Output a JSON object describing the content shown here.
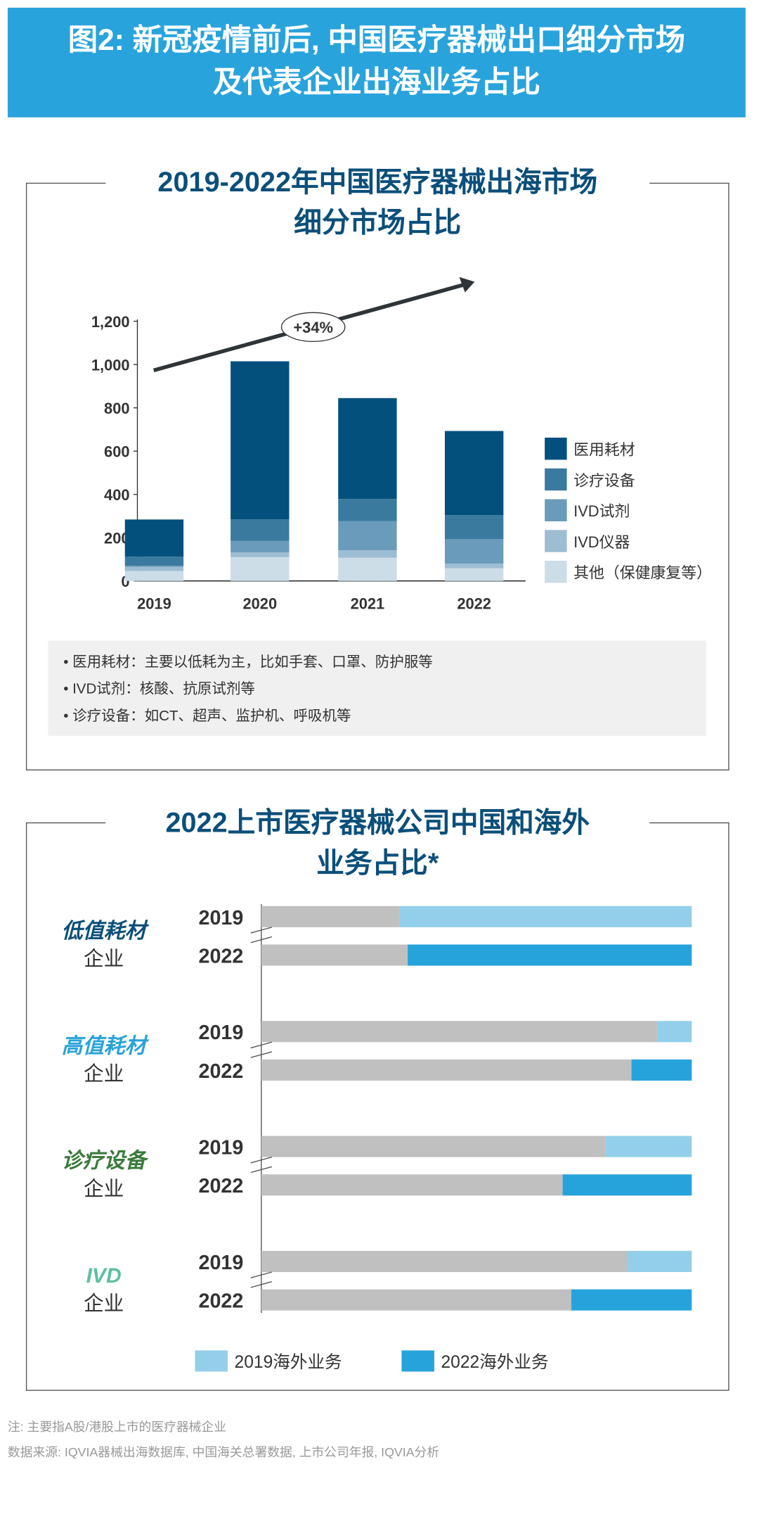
{
  "header": {
    "line1": "图2: 新冠疫情前后, 中国医疗器械出口细分市场",
    "line2": "及代表企业出海业务占比"
  },
  "chart_data": [
    {
      "type": "bar",
      "stacked": true,
      "title": "2019-2022年中国医疗器械出海市场细分市场占比",
      "title_lines": [
        "2019-2022年中国医疗器械出海市场",
        "细分市场占比"
      ],
      "categories": [
        "2019",
        "2020",
        "2021",
        "2022"
      ],
      "ylim": [
        0,
        1200
      ],
      "yticks": [
        "0",
        "200",
        "400",
        "600",
        "800",
        "1,000",
        "1,200"
      ],
      "legend_position": "right",
      "annotation": "+34%",
      "series": [
        {
          "name": "其他（保健康复等）",
          "color": "#ccdde8",
          "values": [
            46,
            110,
            107,
            59
          ]
        },
        {
          "name": "IVD仪器",
          "color": "#9dbdd2",
          "values": [
            19,
            22,
            35,
            21
          ]
        },
        {
          "name": "IVD试剂",
          "color": "#6a9bba",
          "values": [
            5,
            54,
            135,
            113
          ]
        },
        {
          "name": "诊疗设备",
          "color": "#3a7a9e",
          "values": [
            43,
            99,
            102,
            111
          ]
        },
        {
          "name": "医用耗材",
          "color": "#03507d",
          "values": [
            171,
            730,
            466,
            389
          ]
        }
      ],
      "legend_order": [
        "医用耗材",
        "诊疗设备",
        "IVD试剂",
        "IVD仪器",
        "其他（保健康复等）"
      ],
      "notes": [
        "• 医用耗材：主要以低耗为主，比如手套、口罩、防护服等",
        "• IVD试剂：核酸、抗原试剂等",
        "• 诊疗设备：如CT、超声、监护机、呼吸机等"
      ]
    },
    {
      "type": "bar",
      "orientation": "horizontal",
      "stacked": true,
      "unit": "%",
      "title": "2022上市医疗器械公司中国和海外业务占比*",
      "title_lines": [
        "2022上市医疗器械公司中国和海外",
        "业务占比*"
      ],
      "domestic_color": "#c0c0c0",
      "groups": [
        {
          "name": "低值耗材",
          "suffix": "企业",
          "color": "#0b4f7a",
          "rows": [
            {
              "year": "2019",
              "overseas": 68
            },
            {
              "year": "2022",
              "overseas": 66
            }
          ]
        },
        {
          "name": "高值耗材",
          "suffix": "企业",
          "color": "#2aa3d8",
          "rows": [
            {
              "year": "2019",
              "overseas": 8
            },
            {
              "year": "2022",
              "overseas": 14
            }
          ]
        },
        {
          "name": "诊疗设备",
          "suffix": "企业",
          "color": "#3b7a3c",
          "rows": [
            {
              "year": "2019",
              "overseas": 20
            },
            {
              "year": "2022",
              "overseas": 30
            }
          ]
        },
        {
          "name": "IVD",
          "suffix": "企业",
          "color": "#5cc0a0",
          "rows": [
            {
              "year": "2019",
              "overseas": 15
            },
            {
              "year": "2022",
              "overseas": 28
            }
          ]
        }
      ],
      "legend_position": "bottom",
      "legend": [
        {
          "name": "2019海外业务",
          "color": "#93cfea"
        },
        {
          "name": "2022海外业务",
          "color": "#27a3db"
        }
      ]
    }
  ],
  "footer": {
    "note": "注: 主要指A股/港股上市的医疗器械企业",
    "source": "数据来源: IQVIA器械出海数据库, 中国海关总署数据, 上市公司年报, IQVIA分析"
  }
}
